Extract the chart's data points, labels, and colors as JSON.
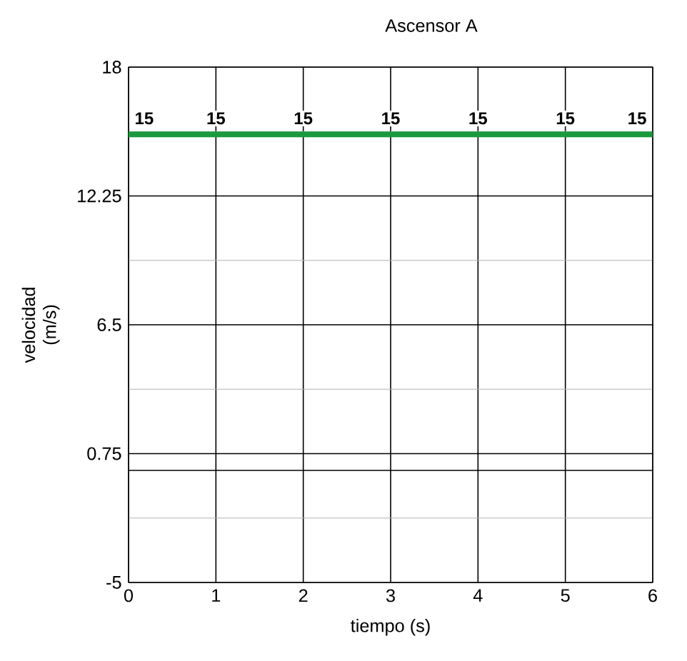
{
  "chart_data": {
    "type": "line",
    "title": "Ascensor A",
    "xlabel": "tiempo (s)",
    "ylabel": "velocidad (m/s)",
    "x": [
      0,
      1,
      2,
      3,
      4,
      5,
      6
    ],
    "series": [
      {
        "color": "#1a9a3c",
        "values": [
          15,
          15,
          15,
          15,
          15,
          15,
          15
        ]
      }
    ],
    "xlim": [
      0,
      6
    ],
    "ylim": [
      -5,
      18
    ],
    "xticks": [
      0,
      1,
      2,
      3,
      4,
      5,
      6
    ],
    "yticks": [
      -5,
      0.75,
      6.5,
      12.25,
      18
    ],
    "ref_lines": [
      {
        "axis": "y",
        "value": 0,
        "color": "#000000"
      }
    ],
    "grid": true,
    "data_labels": true,
    "marker": "none",
    "line_style": "solid"
  }
}
